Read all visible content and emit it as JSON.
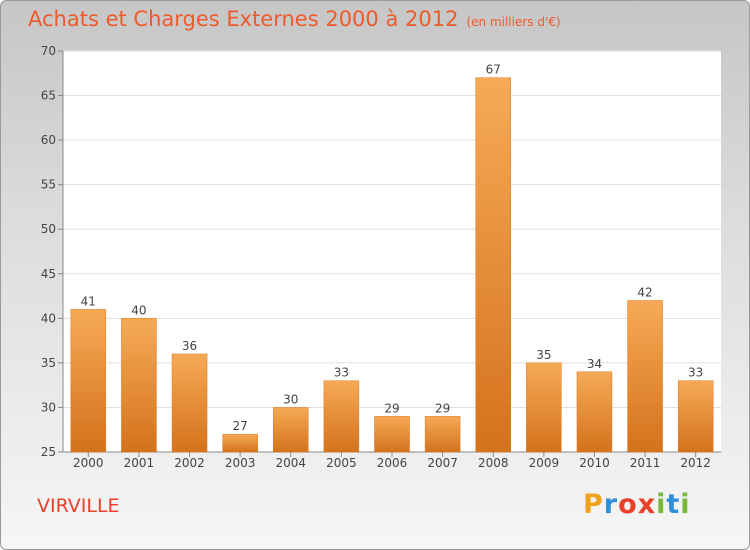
{
  "header": {
    "title": "Achats et Charges Externes 2000 à 2012",
    "unit": "(en milliers d'€)"
  },
  "footer": {
    "commune": "VIRVILLE",
    "logo_text": "Proxiti"
  },
  "colors": {
    "title": "#ee5a2a",
    "bar_top": "#f6aa56",
    "bar_bottom": "#d4721c",
    "commune": "#e8402a"
  },
  "chart_data": {
    "type": "bar",
    "title": "Achats et Charges Externes 2000 à 2012",
    "xlabel": "",
    "ylabel": "",
    "categories": [
      "2000",
      "2001",
      "2002",
      "2003",
      "2004",
      "2005",
      "2006",
      "2007",
      "2008",
      "2009",
      "2010",
      "2011",
      "2012"
    ],
    "values": [
      41,
      40,
      36,
      27,
      30,
      33,
      29,
      29,
      67,
      35,
      34,
      42,
      33
    ],
    "ylim": [
      25,
      70
    ],
    "yticks": [
      25,
      30,
      35,
      40,
      45,
      50,
      55,
      60,
      65,
      70
    ],
    "grid": true,
    "data_labels": true
  }
}
